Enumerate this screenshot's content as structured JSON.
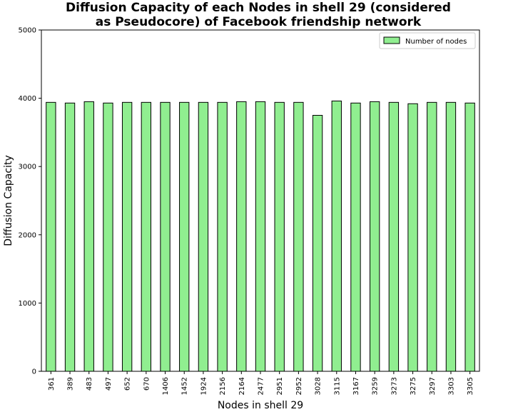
{
  "chart_data": {
    "type": "bar",
    "title_lines": [
      "Diffusion Capacity of each Nodes in shell 29 (considered",
      "as Pseudocore) of Facebook friendship network"
    ],
    "xlabel": "Nodes in shell 29",
    "ylabel": "Diffusion Capacity",
    "ylim": [
      0,
      5000
    ],
    "yticks": [
      0,
      1000,
      2000,
      3000,
      4000,
      5000
    ],
    "legend": {
      "label": "Number of nodes",
      "placement": "top-right"
    },
    "colors": {
      "bar_fill": "#90ee90",
      "bar_edge": "#000000"
    },
    "categories": [
      "361",
      "389",
      "483",
      "497",
      "652",
      "670",
      "1406",
      "1452",
      "1924",
      "2156",
      "2164",
      "2477",
      "2951",
      "2952",
      "3028",
      "3115",
      "3167",
      "3259",
      "3273",
      "3275",
      "3297",
      "3303",
      "3305"
    ],
    "series": [
      {
        "name": "Number of nodes",
        "values": [
          3940,
          3930,
          3950,
          3930,
          3940,
          3940,
          3940,
          3940,
          3940,
          3940,
          3950,
          3950,
          3940,
          3940,
          3750,
          3960,
          3930,
          3950,
          3940,
          3920,
          3940,
          3940,
          3930
        ]
      }
    ]
  }
}
